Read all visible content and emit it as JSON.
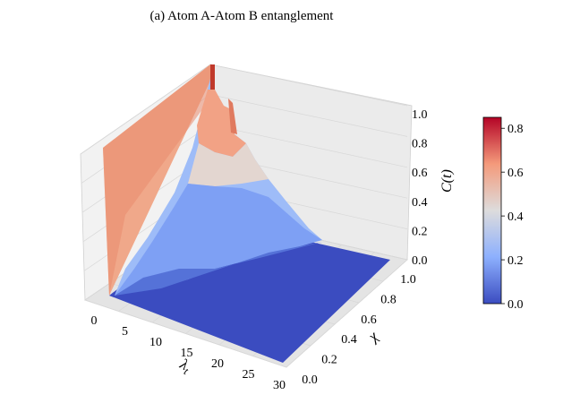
{
  "chart_data": {
    "type": "surface-3d",
    "title": "(a) Atom A-Atom B entanglement",
    "xlabel": "λ_t",
    "ylabel": "χ",
    "zlabel": "C(t)",
    "x_ticks": [
      "0",
      "5",
      "10",
      "15",
      "20",
      "25",
      "30"
    ],
    "y_ticks": [
      "0.0",
      "0.2",
      "0.4",
      "0.6",
      "0.8",
      "1.0"
    ],
    "z_ticks": [
      "0.0",
      "0.2",
      "0.4",
      "0.6",
      "0.8",
      "1.0"
    ],
    "xlim": [
      0,
      30
    ],
    "ylim": [
      0,
      1
    ],
    "zlim": [
      0,
      1
    ],
    "colormap": "coolwarm",
    "colorbar": {
      "ticks": [
        "0.0",
        "0.2",
        "0.4",
        "0.6",
        "0.8"
      ],
      "range": [
        0,
        0.85
      ]
    },
    "ridges": [
      {
        "chi": 0.0,
        "values": [
          [
            0,
            0.55
          ],
          [
            30,
            0.0
          ]
        ]
      },
      {
        "chi": 1.0,
        "values": [
          [
            0,
            0.84
          ],
          [
            5,
            0.58
          ],
          [
            10,
            0.22
          ],
          [
            15,
            0.08
          ],
          [
            20,
            0.02
          ],
          [
            30,
            0.0
          ]
        ]
      }
    ]
  }
}
